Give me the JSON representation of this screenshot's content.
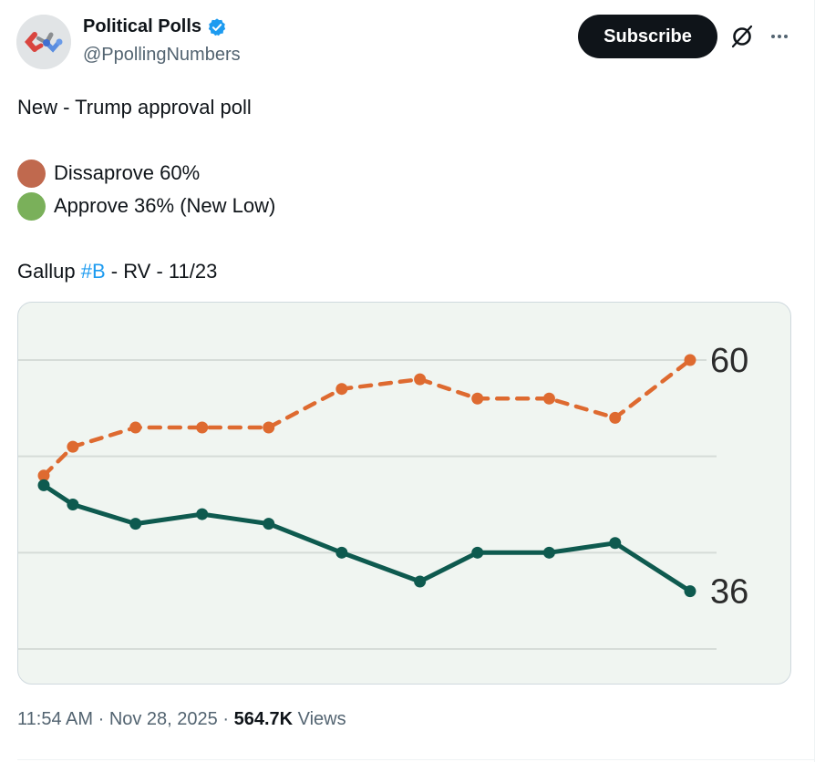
{
  "account": {
    "display_name": "Political Polls",
    "handle": "@PpollingNumbers",
    "verified": true
  },
  "header_actions": {
    "subscribe_label": "Subscribe",
    "grok_icon": "grok-slash-circle-icon",
    "more_icon": "more-horizontal-icon"
  },
  "tweet": {
    "line1": "New - Trump approval poll",
    "legend": [
      {
        "label": "Dissaprove 60%",
        "color": "#c0694e"
      },
      {
        "label": "Approve 36% (New Low)",
        "color": "#7ab05a"
      }
    ],
    "source_prefix": "Gallup ",
    "hashtag": "#B",
    "source_suffix": " - RV - 11/23"
  },
  "meta": {
    "time": "11:54 AM",
    "separator": " · ",
    "date": "Nov 28, 2025",
    "views_count": "564.7K",
    "views_label": " Views"
  },
  "colors": {
    "accent_link": "#1d9bf0",
    "disapprove_line": "#de6a30",
    "approve_line": "#0e5a4f",
    "chart_bg": "#f0f5f1"
  },
  "chart_data": {
    "type": "line",
    "title": "",
    "xlabel": "",
    "ylabel": "",
    "ylim": [
      27,
      64
    ],
    "gridlines": [
      60,
      50,
      40,
      30
    ],
    "grid": true,
    "x": [
      1,
      2,
      3,
      4,
      5,
      6,
      7,
      8,
      9,
      10,
      11
    ],
    "series": [
      {
        "name": "Disapprove",
        "style": "dashed",
        "color": "#de6a30",
        "values": [
          48,
          51,
          53,
          53,
          53,
          57,
          58,
          56,
          56,
          54,
          60
        ],
        "end_label": "60"
      },
      {
        "name": "Approve",
        "style": "solid",
        "color": "#0e5a4f",
        "values": [
          47,
          45,
          43,
          44,
          43,
          40,
          37,
          40,
          40,
          41,
          36
        ],
        "end_label": "36"
      }
    ]
  }
}
